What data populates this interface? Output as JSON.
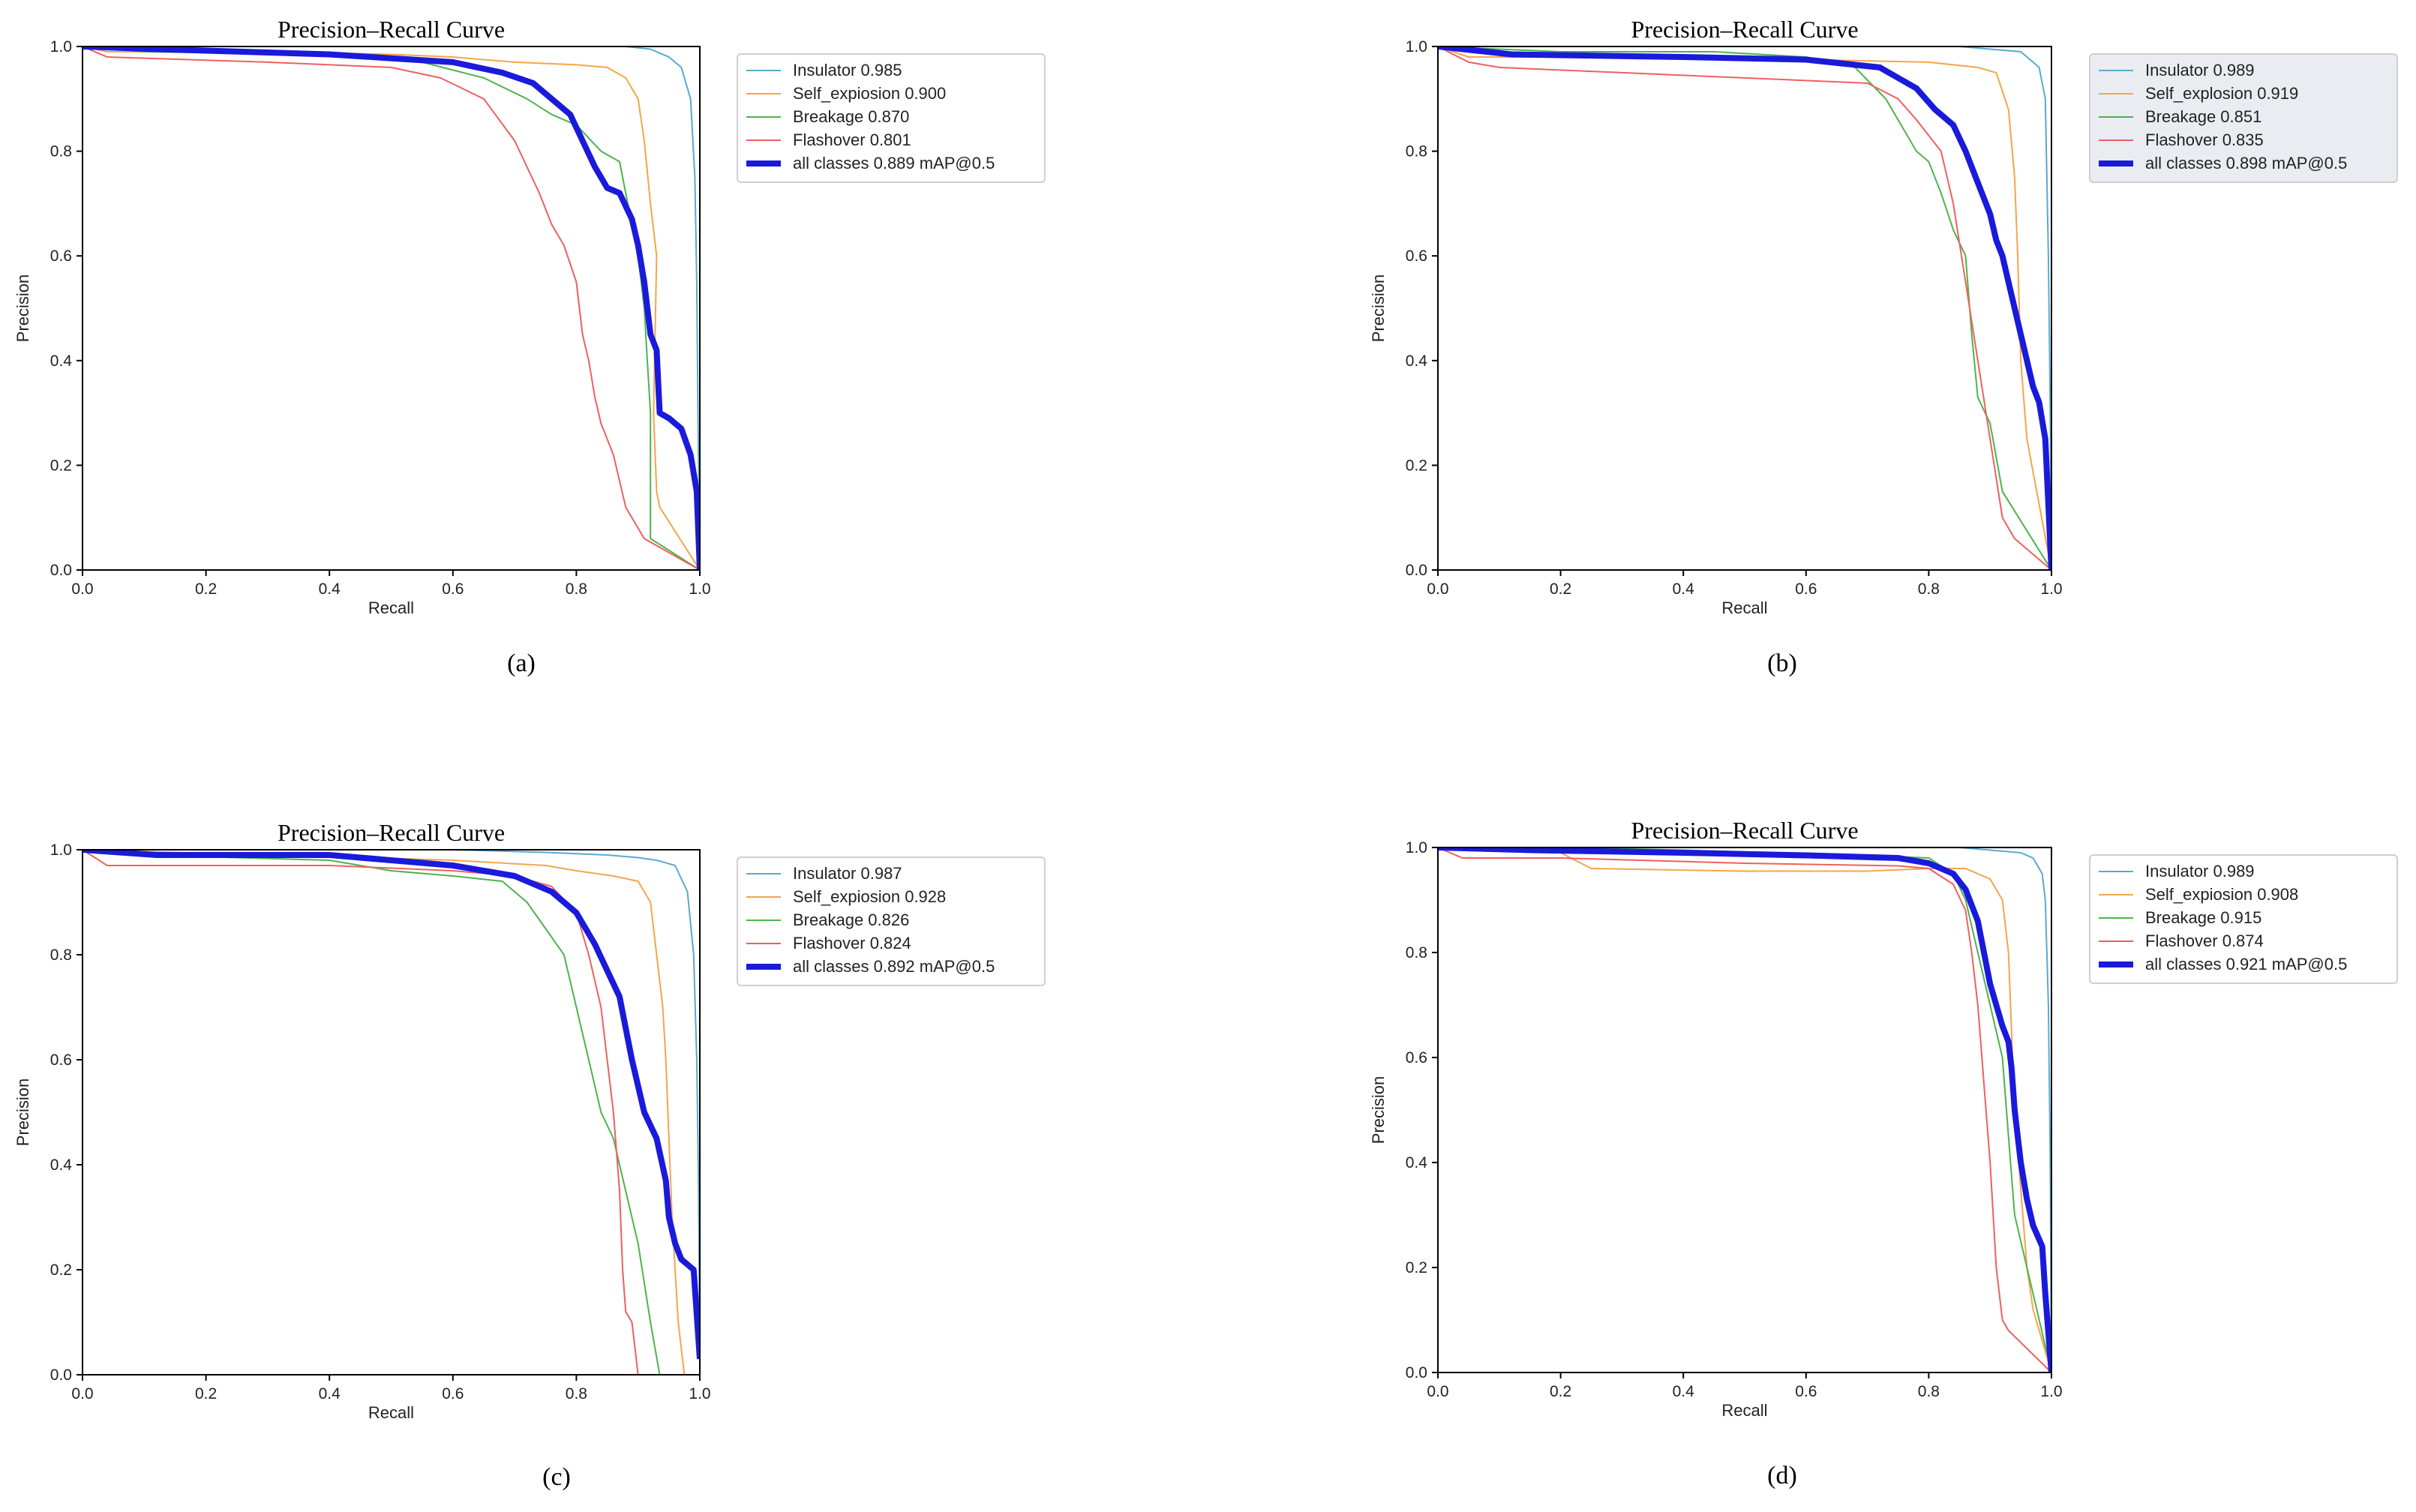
{
  "chart_data": [
    {
      "type": "line",
      "panel": "(a)",
      "title": "Precision–Recall Curve",
      "xlabel": "Recall",
      "ylabel": "Precision",
      "xlim": [
        0,
        1
      ],
      "ylim": [
        0,
        1
      ],
      "xticks": [
        "0.0",
        "0.2",
        "0.4",
        "0.6",
        "0.8",
        "1.0"
      ],
      "yticks": [
        "0.0",
        "0.2",
        "0.4",
        "0.6",
        "0.8",
        "1.0"
      ],
      "legend_position": "outside-right",
      "series": [
        {
          "name": "Insulator 0.985",
          "color": "#5aa9d0",
          "width": 1,
          "x": [
            0,
            0.15,
            0.5,
            0.8,
            0.88,
            0.92,
            0.95,
            0.97,
            0.985,
            0.992,
            0.995,
            0.997,
            1.0
          ],
          "y": [
            1.0,
            1.0,
            1.0,
            1.0,
            1.0,
            0.995,
            0.98,
            0.96,
            0.9,
            0.75,
            0.55,
            0.3,
            0.0
          ]
        },
        {
          "name": "Self_expiosion 0.900",
          "color": "#f5a54a",
          "width": 1,
          "x": [
            0,
            0.04,
            0.3,
            0.5,
            0.6,
            0.7,
            0.8,
            0.85,
            0.88,
            0.9,
            0.91,
            0.92,
            0.93,
            0.925,
            0.93,
            0.935,
            1.0
          ],
          "y": [
            1.0,
            0.99,
            0.99,
            0.985,
            0.98,
            0.97,
            0.965,
            0.96,
            0.94,
            0.9,
            0.82,
            0.7,
            0.6,
            0.3,
            0.15,
            0.12,
            0.0
          ]
        },
        {
          "name": "Breakage 0.870",
          "color": "#4db34d",
          "width": 1,
          "x": [
            0,
            0.1,
            0.4,
            0.55,
            0.65,
            0.72,
            0.76,
            0.8,
            0.84,
            0.87,
            0.88,
            0.9,
            0.91,
            0.915,
            0.92,
            0.92,
            1.0
          ],
          "y": [
            1.0,
            0.99,
            0.985,
            0.97,
            0.94,
            0.9,
            0.87,
            0.85,
            0.8,
            0.78,
            0.72,
            0.6,
            0.5,
            0.4,
            0.3,
            0.06,
            0.0
          ]
        },
        {
          "name": "Flashover 0.801",
          "color": "#ee6060",
          "width": 1,
          "x": [
            0,
            0.04,
            0.3,
            0.5,
            0.58,
            0.65,
            0.7,
            0.74,
            0.76,
            0.78,
            0.8,
            0.81,
            0.82,
            0.83,
            0.84,
            0.86,
            0.88,
            0.9,
            0.91,
            1.0
          ],
          "y": [
            1.0,
            0.98,
            0.97,
            0.96,
            0.94,
            0.9,
            0.82,
            0.72,
            0.66,
            0.62,
            0.55,
            0.45,
            0.4,
            0.33,
            0.28,
            0.22,
            0.12,
            0.08,
            0.06,
            0.0
          ]
        },
        {
          "name": "all classes 0.889 mAP@0.5",
          "color": "#1a1adb",
          "width": 4,
          "x": [
            0,
            0.12,
            0.4,
            0.6,
            0.68,
            0.73,
            0.76,
            0.79,
            0.81,
            0.83,
            0.85,
            0.87,
            0.89,
            0.9,
            0.91,
            0.92,
            0.93,
            0.935,
            0.95,
            0.97,
            0.985,
            0.995,
            1.0
          ],
          "y": [
            1.0,
            0.995,
            0.985,
            0.97,
            0.95,
            0.93,
            0.9,
            0.87,
            0.82,
            0.77,
            0.73,
            0.72,
            0.67,
            0.62,
            0.55,
            0.45,
            0.42,
            0.3,
            0.29,
            0.27,
            0.22,
            0.15,
            0.0
          ]
        }
      ]
    },
    {
      "type": "line",
      "panel": "(b)",
      "title": "Precision–Recall Curve",
      "xlabel": "Recall",
      "ylabel": "Precision",
      "xlim": [
        0,
        1
      ],
      "ylim": [
        0,
        1
      ],
      "xticks": [
        "0.0",
        "0.2",
        "0.4",
        "0.6",
        "0.8",
        "1.0"
      ],
      "yticks": [
        "0.0",
        "0.2",
        "0.4",
        "0.6",
        "0.8",
        "1.0"
      ],
      "legend_position": "outside-right",
      "series": [
        {
          "name": "Insulator 0.989",
          "color": "#5aa9d0",
          "width": 1,
          "x": [
            0,
            0.2,
            0.6,
            0.85,
            0.9,
            0.95,
            0.98,
            0.99,
            0.995,
            0.998,
            1.0
          ],
          "y": [
            1.0,
            1.0,
            1.0,
            1.0,
            0.995,
            0.99,
            0.96,
            0.9,
            0.6,
            0.3,
            0.0
          ]
        },
        {
          "name": "Self_explosion 0.919",
          "color": "#f5a54a",
          "width": 1,
          "x": [
            0,
            0.05,
            0.3,
            0.6,
            0.8,
            0.88,
            0.91,
            0.93,
            0.94,
            0.945,
            0.95,
            0.96,
            1.0
          ],
          "y": [
            1.0,
            0.98,
            0.98,
            0.975,
            0.97,
            0.96,
            0.95,
            0.88,
            0.75,
            0.6,
            0.4,
            0.25,
            0.0
          ]
        },
        {
          "name": "Breakage 0.851",
          "color": "#4db34d",
          "width": 1,
          "x": [
            0,
            0.2,
            0.45,
            0.6,
            0.68,
            0.73,
            0.76,
            0.78,
            0.8,
            0.82,
            0.84,
            0.86,
            0.87,
            0.88,
            0.9,
            0.92,
            1.0
          ],
          "y": [
            1.0,
            0.99,
            0.99,
            0.98,
            0.96,
            0.9,
            0.84,
            0.8,
            0.78,
            0.72,
            0.65,
            0.6,
            0.45,
            0.33,
            0.28,
            0.15,
            0.0
          ]
        },
        {
          "name": "Flashover 0.835",
          "color": "#ee6060",
          "width": 1,
          "x": [
            0,
            0.05,
            0.1,
            0.3,
            0.5,
            0.7,
            0.75,
            0.78,
            0.82,
            0.84,
            0.86,
            0.88,
            0.9,
            0.92,
            0.94,
            0.96,
            1.0
          ],
          "y": [
            1.0,
            0.97,
            0.96,
            0.95,
            0.94,
            0.93,
            0.9,
            0.86,
            0.8,
            0.7,
            0.55,
            0.4,
            0.25,
            0.1,
            0.06,
            0.04,
            0.0
          ]
        },
        {
          "name": "all classes 0.898 mAP@0.5",
          "color": "#1a1adb",
          "width": 4,
          "x": [
            0,
            0.12,
            0.4,
            0.6,
            0.72,
            0.78,
            0.81,
            0.84,
            0.86,
            0.88,
            0.9,
            0.91,
            0.92,
            0.93,
            0.94,
            0.95,
            0.96,
            0.97,
            0.98,
            0.99,
            1.0
          ],
          "y": [
            1.0,
            0.985,
            0.98,
            0.975,
            0.96,
            0.92,
            0.88,
            0.85,
            0.8,
            0.74,
            0.68,
            0.63,
            0.6,
            0.55,
            0.5,
            0.45,
            0.4,
            0.35,
            0.32,
            0.25,
            0.0
          ]
        }
      ]
    },
    {
      "type": "line",
      "panel": "(c)",
      "title": "Precision–Recall Curve",
      "xlabel": "Recall",
      "ylabel": "Precision",
      "xlim": [
        0,
        1
      ],
      "ylim": [
        0,
        1
      ],
      "xticks": [
        "0.0",
        "0.2",
        "0.4",
        "0.6",
        "0.8",
        "1.0"
      ],
      "yticks": [
        "0.0",
        "0.2",
        "0.4",
        "0.6",
        "0.8",
        "1.0"
      ],
      "legend_position": "outside-right",
      "series": [
        {
          "name": "Insulator 0.987",
          "color": "#5aa9d0",
          "width": 1,
          "x": [
            0,
            0.3,
            0.6,
            0.75,
            0.85,
            0.9,
            0.93,
            0.96,
            0.98,
            0.99,
            0.995,
            0.998,
            1.0
          ],
          "y": [
            1.0,
            1.0,
            1.0,
            0.995,
            0.99,
            0.985,
            0.98,
            0.97,
            0.92,
            0.8,
            0.6,
            0.35,
            0.0
          ]
        },
        {
          "name": "Self_expiosion 0.928",
          "color": "#f5a54a",
          "width": 1,
          "x": [
            0,
            0.3,
            0.6,
            0.75,
            0.8,
            0.86,
            0.9,
            0.92,
            0.93,
            0.94,
            0.945,
            0.95,
            0.955,
            0.965,
            0.975
          ],
          "y": [
            1.0,
            0.99,
            0.98,
            0.97,
            0.96,
            0.95,
            0.94,
            0.9,
            0.8,
            0.7,
            0.6,
            0.45,
            0.3,
            0.1,
            0.0
          ]
        },
        {
          "name": "Breakage 0.826",
          "color": "#4db34d",
          "width": 1,
          "x": [
            0,
            0.1,
            0.4,
            0.5,
            0.6,
            0.68,
            0.72,
            0.75,
            0.78,
            0.8,
            0.82,
            0.84,
            0.86,
            0.88,
            0.9,
            0.92,
            0.935
          ],
          "y": [
            1.0,
            0.99,
            0.98,
            0.96,
            0.95,
            0.94,
            0.9,
            0.85,
            0.8,
            0.7,
            0.6,
            0.5,
            0.45,
            0.35,
            0.25,
            0.1,
            0.0
          ]
        },
        {
          "name": "Flashover 0.824",
          "color": "#ee6060",
          "width": 1,
          "x": [
            0,
            0.04,
            0.4,
            0.6,
            0.7,
            0.76,
            0.8,
            0.82,
            0.84,
            0.85,
            0.86,
            0.87,
            0.875,
            0.88,
            0.89,
            0.9
          ],
          "y": [
            1.0,
            0.97,
            0.97,
            0.96,
            0.95,
            0.93,
            0.88,
            0.8,
            0.7,
            0.6,
            0.5,
            0.35,
            0.2,
            0.12,
            0.1,
            0.0
          ]
        },
        {
          "name": "all classes 0.892 mAP@0.5",
          "color": "#1a1adb",
          "width": 4,
          "x": [
            0,
            0.12,
            0.4,
            0.6,
            0.7,
            0.76,
            0.8,
            0.83,
            0.85,
            0.87,
            0.88,
            0.89,
            0.9,
            0.91,
            0.93,
            0.945,
            0.95,
            0.96,
            0.97,
            0.99,
            1.0
          ],
          "y": [
            1.0,
            0.99,
            0.99,
            0.97,
            0.95,
            0.92,
            0.88,
            0.82,
            0.77,
            0.72,
            0.66,
            0.6,
            0.55,
            0.5,
            0.45,
            0.37,
            0.3,
            0.25,
            0.22,
            0.2,
            0.03
          ]
        }
      ]
    },
    {
      "type": "line",
      "panel": "(d)",
      "title": "Precision–Recall Curve",
      "xlabel": "Recall",
      "ylabel": "Precision",
      "xlim": [
        0,
        1
      ],
      "ylim": [
        0,
        1
      ],
      "xticks": [
        "0.0",
        "0.2",
        "0.4",
        "0.6",
        "0.8",
        "1.0"
      ],
      "yticks": [
        "0.0",
        "0.2",
        "0.4",
        "0.6",
        "0.8",
        "1.0"
      ],
      "legend_position": "outside-right",
      "series": [
        {
          "name": "Insulator 0.989",
          "color": "#5aa9d0",
          "width": 1,
          "x": [
            0,
            0.3,
            0.6,
            0.85,
            0.9,
            0.95,
            0.97,
            0.985,
            0.99,
            0.995,
            0.998,
            1.0
          ],
          "y": [
            1.0,
            1.0,
            1.0,
            1.0,
            0.995,
            0.99,
            0.98,
            0.95,
            0.9,
            0.7,
            0.4,
            0.0
          ]
        },
        {
          "name": "Self_expiosion 0.908",
          "color": "#f5a54a",
          "width": 1,
          "x": [
            0,
            0.2,
            0.25,
            0.5,
            0.7,
            0.8,
            0.86,
            0.9,
            0.92,
            0.93,
            0.935,
            0.94,
            0.95,
            0.96,
            0.97,
            1.0
          ],
          "y": [
            1.0,
            0.99,
            0.96,
            0.955,
            0.955,
            0.96,
            0.96,
            0.94,
            0.9,
            0.8,
            0.65,
            0.5,
            0.35,
            0.2,
            0.12,
            0.0
          ]
        },
        {
          "name": "Breakage 0.915",
          "color": "#4db34d",
          "width": 1,
          "x": [
            0,
            0.2,
            0.4,
            0.55,
            0.7,
            0.8,
            0.84,
            0.86,
            0.88,
            0.9,
            0.92,
            0.93,
            0.94,
            0.95,
            0.97,
            1.0
          ],
          "y": [
            1.0,
            1.0,
            0.995,
            0.99,
            0.985,
            0.98,
            0.95,
            0.9,
            0.8,
            0.7,
            0.6,
            0.45,
            0.3,
            0.25,
            0.15,
            0.0
          ]
        },
        {
          "name": "Flashover 0.874",
          "color": "#ee6060",
          "width": 1,
          "x": [
            0,
            0.04,
            0.2,
            0.5,
            0.75,
            0.8,
            0.84,
            0.86,
            0.87,
            0.88,
            0.89,
            0.9,
            0.91,
            0.92,
            0.93,
            1.0
          ],
          "y": [
            1.0,
            0.98,
            0.98,
            0.97,
            0.965,
            0.96,
            0.93,
            0.88,
            0.8,
            0.7,
            0.55,
            0.4,
            0.2,
            0.1,
            0.08,
            0.0
          ]
        },
        {
          "name": "all classes 0.921 mAP@0.5",
          "color": "#1a1adb",
          "width": 4,
          "x": [
            0,
            0.15,
            0.4,
            0.6,
            0.75,
            0.8,
            0.84,
            0.86,
            0.88,
            0.89,
            0.9,
            0.91,
            0.92,
            0.93,
            0.935,
            0.94,
            0.95,
            0.96,
            0.97,
            0.985,
            0.99,
            1.0
          ],
          "y": [
            1.0,
            0.995,
            0.99,
            0.985,
            0.98,
            0.97,
            0.95,
            0.92,
            0.86,
            0.8,
            0.74,
            0.7,
            0.66,
            0.63,
            0.58,
            0.5,
            0.4,
            0.33,
            0.28,
            0.24,
            0.15,
            0.0
          ]
        }
      ]
    }
  ]
}
